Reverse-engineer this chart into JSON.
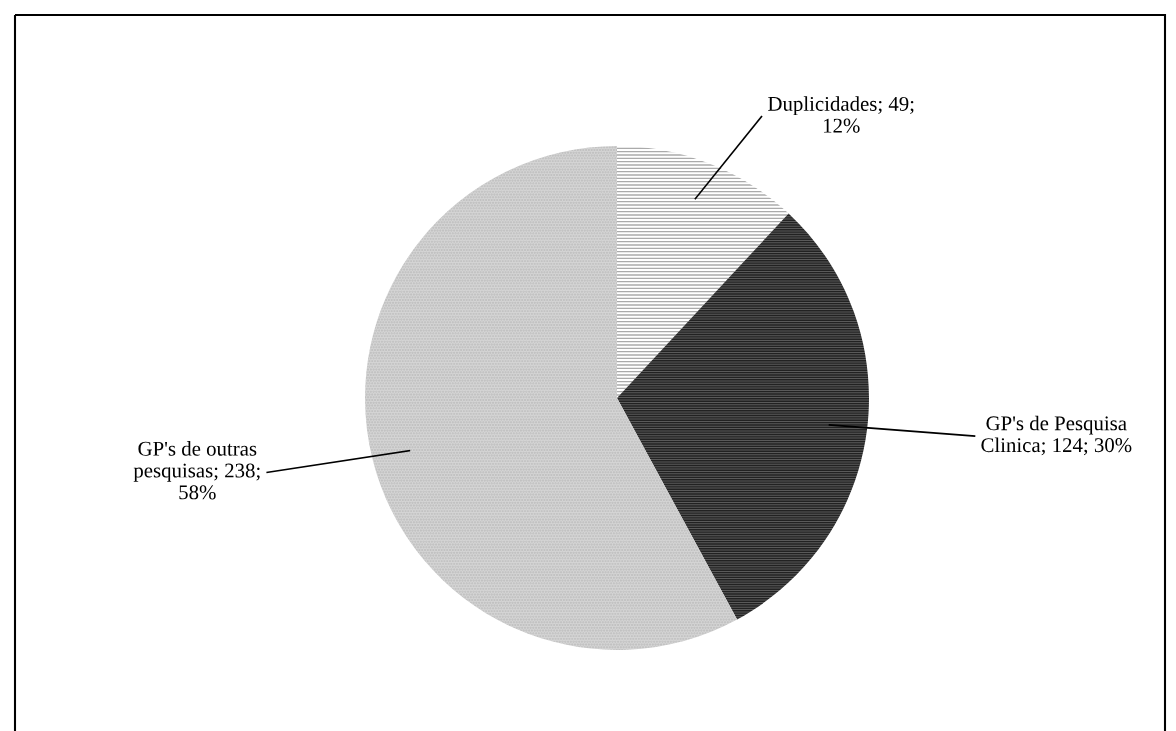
{
  "chart_data": {
    "type": "pie",
    "categories": [
      "Duplicidades",
      "GP's de Pesquisa Clinica",
      "GP's de outras pesquisas"
    ],
    "values": [
      49,
      124,
      238
    ],
    "colors": [
      "#ffffff",
      "#5a5a5a",
      "#d4d4d4"
    ],
    "value_labels": [
      "49; 12%",
      "124; 30%",
      "238; 58%"
    ],
    "legend": false
  }
}
